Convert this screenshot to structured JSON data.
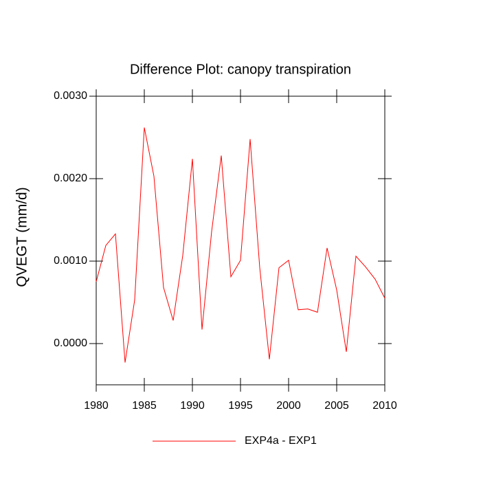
{
  "chart_data": {
    "type": "line",
    "title": "Difference Plot: canopy transpiration",
    "y_label": "QVEGT  (mm/d)",
    "x": [
      1980,
      1981,
      1982,
      1983,
      1984,
      1985,
      1986,
      1987,
      1988,
      1989,
      1990,
      1991,
      1992,
      1993,
      1994,
      1995,
      1996,
      1997,
      1998,
      1999,
      2000,
      2001,
      2002,
      2003,
      2004,
      2005,
      2006,
      2007,
      2008,
      2009,
      2010
    ],
    "series": [
      {
        "name": "EXP4a - EXP1",
        "color": "#ff0000",
        "values": [
          0.00075,
          0.00119,
          0.00133,
          -0.00023,
          0.00053,
          0.00262,
          0.00203,
          0.00068,
          0.00028,
          0.00107,
          0.00224,
          0.00017,
          0.00136,
          0.00228,
          0.00081,
          0.00101,
          0.00248,
          0.00092,
          -0.00019,
          0.00092,
          0.00101,
          0.00041,
          0.00042,
          0.00038,
          0.00116,
          0.00065,
          -0.0001,
          0.00106,
          0.00093,
          0.00078,
          0.00055
        ]
      }
    ],
    "xlim": [
      1980,
      2010
    ],
    "xticks": [
      1980,
      1985,
      1990,
      1995,
      2000,
      2005,
      2010
    ],
    "ylim": [
      -0.0005,
      0.003
    ],
    "yticks": [
      {
        "value": 0,
        "label": "0.0000"
      },
      {
        "value": 0.001,
        "label": "0.0010"
      },
      {
        "value": 0.002,
        "label": "0.0020"
      },
      {
        "value": 0.003,
        "label": "0.0030"
      }
    ]
  }
}
